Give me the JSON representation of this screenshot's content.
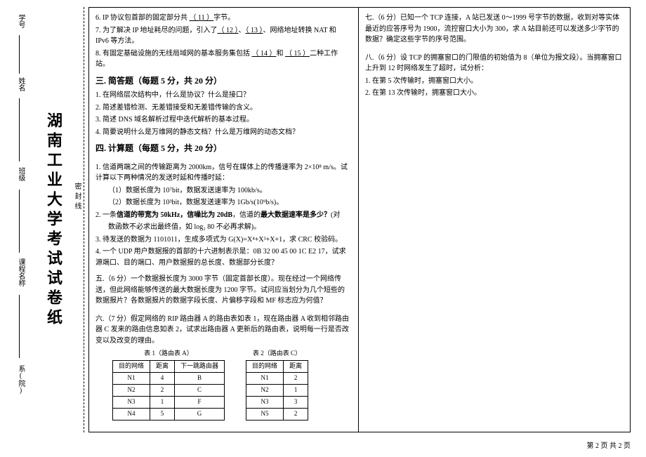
{
  "vertical": {
    "title": "湖南工业大学考试试卷纸",
    "dept": "系(院)",
    "course": "课程名称",
    "class": "班级",
    "name": "姓名",
    "sid": "学号",
    "seal": "密封线"
  },
  "left": {
    "cont": [
      {
        "n": "6.",
        "t": "IP 协议包首部的固定部分共 <u>（ 11 ）</u>字节。"
      },
      {
        "n": "7.",
        "t": "为了解决 IP 地址耗尽的问题，引入了<u>（ 12 ）</u>、<u>（ 13 ）</u>、网络地址转换 NAT 和 IPv6 等方法。"
      },
      {
        "n": "8.",
        "t": "有固定基础设施的无线局域网的基本服务集包括 <u>（ 14 ）</u>和 <u>（ 15 ）</u>二种工作站。"
      }
    ],
    "sec3_title": "三. 简答题（每题 5 分，共 20 分）",
    "sec3": [
      {
        "n": "1.",
        "t": "在网络层次结构中，什么是协议？什么是接口？"
      },
      {
        "n": "2.",
        "t": "简述差错检测、无差错接受和无差错传输的含义。"
      },
      {
        "n": "3.",
        "t": "简述 DNS 域名解析过程中迭代解析的基本过程。"
      },
      {
        "n": "4.",
        "t": "简要说明什么是万维网的静态文档？什么是万维网的动态文档？"
      }
    ],
    "sec4_title": "四. 计算题（每题 5 分，共 20 分）",
    "sec4": [
      {
        "n": "1.",
        "t": "信道两端之间的传输距离为 2000km，信号在媒体上的传播速率为 2×10⁸ m/s。试计算以下两种情况的发送时延和传播时延："
      },
      {
        "n": "",
        "t": "（1）数据长度为 10⁷bit，数据发送速率为 100kb/s。"
      },
      {
        "n": "",
        "t": "（2）数据长度为 10³bit，数据发送速率为 1Gb/s(10⁹b/s)。"
      },
      {
        "n": "2.",
        "t": "一条<b>信道的带宽为 50kHz，信噪比为 20dB</b>，信道的<b>最大数据速率是多少？</b>(对"
      },
      {
        "n": "",
        "t": "数函数不必求出最终值，如 log₂ 80 不必再求解)。"
      },
      {
        "n": "3.",
        "t": "待发送的数据为 1101011，生成多项式为 G(X)=X⁴+X³+X+1，求 CRC 校验码。"
      },
      {
        "n": "4.",
        "t": "一个 UDP 用户数据报的首部的十六进制表示是：0B 32 00 45 00 1C E2 17，试求源端口、目的端口、用户数据报的总长度、数据部分长度？"
      }
    ],
    "sec5": [
      "五.（6 分）一个数据报长度为 3000 字节（固定首部长度）。现在经过一个网络传送，但此网络能够传送的最大数据长度为 1200 字节。试问应当划分为几个短些的数据报片？各数据报片的数据字段长度、片偏移字段和 MF 标志应为何值？"
    ],
    "sec6": [
      "六.（7 分）假定网络的 RIP 路由器 A 的路由表如表 1，现在路由器 A 收到相邻路由器 C 发来的路由信息如表 2，试求出路由器 A 更新后的路由表，说明每一行是否改变以及改变的理由。"
    ],
    "table1": {
      "title": "表 1（路由表 A）",
      "cols": [
        "目的网络",
        "距离",
        "下一跳路由器"
      ],
      "rows": [
        [
          "N1",
          "4",
          "B"
        ],
        [
          "N2",
          "2",
          "C"
        ],
        [
          "N3",
          "1",
          "F"
        ],
        [
          "N4",
          "5",
          "G"
        ]
      ]
    },
    "table2": {
      "title": "表 2（路由表 C）",
      "cols": [
        "目的网络",
        "距离"
      ],
      "rows": [
        [
          "N1",
          "2"
        ],
        [
          "N2",
          "1"
        ],
        [
          "N3",
          "3"
        ],
        [
          "N5",
          "2"
        ]
      ]
    }
  },
  "right": {
    "sec7": [
      "七.（6 分）已知一个 TCP 连接，A 站已发送 0～1999 号字节的数据，收到对等实体最近的应答序号为 1900，流控窗口大小为 300，求 A 站目前还可以发送多少字节的数据？确定这些字节的序号范围。"
    ],
    "sec8": [
      "八.（6 分）设 TCP 的拥塞窗口的门限值的初始值为 8（单位为报文段）。当拥塞窗口上升到 12 时网络发生了超时，试分析：",
      "1. 在第 5 次传输时，拥塞窗口大小。",
      "2. 在第 13 次传输时，拥塞窗口大小。"
    ]
  },
  "pagenum": "第 2 页  共 2 页"
}
